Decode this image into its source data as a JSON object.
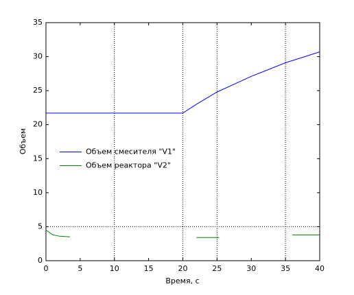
{
  "chart_data": {
    "type": "line",
    "xlabel": "Время, с",
    "ylabel": "Объем",
    "xlim": [
      0,
      40
    ],
    "ylim": [
      0,
      35
    ],
    "xticks": [
      0,
      5,
      10,
      15,
      20,
      25,
      30,
      35,
      40
    ],
    "yticks": [
      0,
      5,
      10,
      15,
      20,
      25,
      30,
      35
    ],
    "vlines": [
      10,
      20,
      25,
      35
    ],
    "hlines": [
      5
    ],
    "ref_color": "#000000",
    "legend": "west",
    "series": [
      {
        "name": "Объем смесителя \"V1\"",
        "color": "#0000ff",
        "x": [
          0,
          20,
          22,
          25,
          30,
          35,
          40
        ],
        "values": [
          21.7,
          21.7,
          23.0,
          24.8,
          27.1,
          29.1,
          30.7
        ]
      },
      {
        "name": "Объем реактора \"V2\"",
        "color": "#008000",
        "x": [
          0,
          1,
          2,
          3.5,
          12,
          22,
          25.3,
          30,
          36,
          40
        ],
        "values": [
          4.5,
          3.8,
          3.6,
          3.5,
          null,
          3.4,
          3.4,
          null,
          3.8,
          3.8
        ]
      }
    ]
  }
}
